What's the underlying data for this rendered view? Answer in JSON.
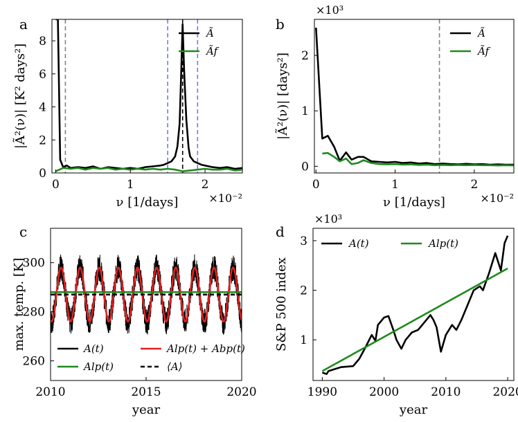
{
  "panels": [
    {
      "label": "a",
      "type": "line",
      "xlim": [
        -0.0005,
        0.025
      ],
      "ylim": [
        0,
        9.3
      ],
      "xticks": [
        0,
        1,
        2
      ],
      "xticks_scale": 0.01,
      "yticks": [
        0,
        2,
        4,
        6,
        8
      ],
      "xlabel": "ν [1/days]",
      "ylabel": "|Ã²(ν)| [K² days²]",
      "multiplier": "×10⁻²",
      "multiplier_pos": "x",
      "vlines": [
        {
          "x": 0.0013,
          "color": "#808080",
          "dash": "6,4"
        },
        {
          "x": 0.015,
          "color": "#6f78ee",
          "dash": "6,4"
        },
        {
          "x": 0.017,
          "color": "#000000",
          "dash": "6,4"
        },
        {
          "x": 0.019,
          "color": "#6f78ee",
          "dash": "6,4"
        }
      ],
      "legend": "upper right",
      "series": [
        {
          "name": "Ã",
          "color": "#000000",
          "x": [
            0,
            0.0003,
            0.0006,
            0.001,
            0.0015,
            0.002,
            0.003,
            0.004,
            0.005,
            0.006,
            0.007,
            0.008,
            0.009,
            0.01,
            0.011,
            0.012,
            0.013,
            0.014,
            0.0145,
            0.015,
            0.0155,
            0.016,
            0.0163,
            0.0166,
            0.0168,
            0.017,
            0.0172,
            0.0175,
            0.0178,
            0.018,
            0.0185,
            0.019,
            0.0195,
            0.02,
            0.021,
            0.022,
            0.023,
            0.024,
            0.025
          ],
          "y": [
            9.3,
            9.3,
            0.8,
            0.35,
            0.45,
            0.3,
            0.35,
            0.3,
            0.4,
            0.25,
            0.35,
            0.3,
            0.25,
            0.3,
            0.25,
            0.35,
            0.4,
            0.45,
            0.5,
            0.6,
            0.7,
            1.0,
            1.6,
            3.0,
            6.0,
            9.0,
            6.2,
            3.2,
            1.5,
            1.0,
            0.7,
            0.6,
            0.5,
            0.45,
            0.35,
            0.3,
            0.35,
            0.25,
            0.3
          ]
        },
        {
          "name": "Ãf",
          "color": "#1e8a1e",
          "x": [
            0,
            0.001,
            0.002,
            0.003,
            0.004,
            0.005,
            0.006,
            0.007,
            0.008,
            0.009,
            0.01,
            0.011,
            0.012,
            0.013,
            0.014,
            0.015,
            0.016,
            0.017,
            0.018,
            0.019,
            0.02,
            0.021,
            0.022,
            0.023,
            0.024,
            0.025
          ],
          "y": [
            0.1,
            0.3,
            0.25,
            0.3,
            0.2,
            0.3,
            0.25,
            0.3,
            0.2,
            0.25,
            0.2,
            0.25,
            0.2,
            0.25,
            0.2,
            0.25,
            0.2,
            0.1,
            0.15,
            0.2,
            0.25,
            0.2,
            0.2,
            0.25,
            0.15,
            0.2
          ]
        }
      ]
    },
    {
      "label": "b",
      "type": "line",
      "xlim": [
        -0.0002,
        0.025
      ],
      "ylim": [
        -120,
        2650
      ],
      "xticks": [
        0,
        1,
        2
      ],
      "xticks_scale": 0.01,
      "yticks": [
        0,
        1,
        2
      ],
      "yticks_scale": 1000,
      "xlabel": "ν [1/days]",
      "ylabel": "|Ã²(ν)| [days²]",
      "multiplier": "×10⁻²",
      "multiplier_pos": "x",
      "multiplier_y": "×10³",
      "vlines": [
        {
          "x": 0.0156,
          "color": "#808080",
          "dash": "6,4"
        }
      ],
      "legend": "upper right",
      "series": [
        {
          "name": "Ã",
          "color": "#000000",
          "x": [
            0,
            0.0008,
            0.0015,
            0.0023,
            0.003,
            0.0038,
            0.0045,
            0.0053,
            0.006,
            0.007,
            0.008,
            0.009,
            0.01,
            0.011,
            0.012,
            0.013,
            0.014,
            0.015,
            0.016,
            0.017,
            0.018,
            0.019,
            0.02,
            0.021,
            0.022,
            0.023,
            0.024,
            0.025
          ],
          "y": [
            2500,
            500,
            550,
            350,
            100,
            250,
            120,
            170,
            170,
            90,
            80,
            70,
            80,
            60,
            70,
            50,
            60,
            40,
            50,
            40,
            35,
            45,
            35,
            40,
            30,
            35,
            30,
            30
          ]
        },
        {
          "name": "Ãf",
          "color": "#1e8a1e",
          "x": [
            0.0008,
            0.0015,
            0.0023,
            0.003,
            0.0038,
            0.0045,
            0.0053,
            0.006,
            0.007,
            0.008,
            0.009,
            0.01,
            0.011,
            0.012,
            0.013,
            0.014,
            0.015,
            0.016,
            0.017,
            0.018,
            0.019,
            0.02,
            0.021,
            0.022,
            0.023,
            0.024,
            0.025
          ],
          "y": [
            230,
            240,
            170,
            90,
            140,
            40,
            60,
            110,
            60,
            40,
            35,
            40,
            30,
            35,
            25,
            30,
            20,
            25,
            20,
            25,
            20,
            25,
            20,
            20,
            15,
            20,
            15
          ]
        }
      ]
    },
    {
      "label": "c",
      "type": "line",
      "xlim": [
        2010,
        2020
      ],
      "ylim": [
        252,
        314
      ],
      "xticks": [
        2010,
        2015,
        2020
      ],
      "yticks": [
        260,
        280,
        300
      ],
      "xlabel": "year",
      "ylabel": "max. temp. [K]",
      "legend": "lower left",
      "legend_entries": [
        {
          "name": "A(t)",
          "color": "#000000",
          "dash": ""
        },
        {
          "name": "Alp(t)",
          "color": "#1e8a1e",
          "dash": ""
        },
        {
          "name": "Alp(t) + Abp(t)",
          "color": "#e02020",
          "dash": ""
        },
        {
          "name": "⟨A⟩",
          "color": "#000000",
          "dash": "6,4"
        }
      ],
      "series": [
        {
          "name": "A(t)",
          "kind": "noisy_seasonal",
          "mean": 287,
          "amplitude": 11,
          "noise": 5,
          "color": "#000000"
        },
        {
          "name": "Alp(t) + Abp(t)",
          "kind": "seasonal",
          "mean": 287,
          "amplitude": 11,
          "color": "#e02020"
        },
        {
          "name": "Alp(t)",
          "kind": "hline",
          "value": 288,
          "color": "#1e8a1e"
        },
        {
          "name": "⟨A⟩",
          "kind": "hline",
          "value": 287,
          "color": "#000000",
          "dash": "6,4"
        }
      ]
    },
    {
      "label": "d",
      "type": "line",
      "xlim": [
        1988.5,
        2021
      ],
      "ylim": [
        180,
        3250
      ],
      "xticks": [
        1990,
        2000,
        2010,
        2020
      ],
      "yticks": [
        1,
        2,
        3
      ],
      "yticks_scale": 1000,
      "xlabel": "year",
      "ylabel": "S&P 500 index",
      "multiplier_y": "×10³",
      "legend": "upper left",
      "series": [
        {
          "name": "A(t)",
          "color": "#000000",
          "x": [
            1990,
            1990.7,
            1991,
            1993,
            1995,
            1996,
            1997,
            1998,
            1998.6,
            1999,
            2000,
            2000.7,
            2001.5,
            2002,
            2002.8,
            2003.5,
            2004.5,
            2005.5,
            2006.5,
            2007.5,
            2008,
            2008.5,
            2009.2,
            2010,
            2011,
            2011.7,
            2012.5,
            2013.5,
            2014.5,
            2015.5,
            2016,
            2017,
            2018,
            2018.9,
            2019.5,
            2020
          ],
          "y": [
            340,
            310,
            370,
            450,
            470,
            620,
            850,
            1100,
            980,
            1300,
            1450,
            1480,
            1200,
            1000,
            820,
            1000,
            1150,
            1200,
            1350,
            1500,
            1400,
            1250,
            760,
            1100,
            1300,
            1200,
            1400,
            1700,
            2000,
            2080,
            2000,
            2350,
            2750,
            2400,
            2950,
            3100
          ]
        },
        {
          "name": "Alp(t)",
          "color": "#1e8a1e",
          "x": [
            1990,
            2020
          ],
          "y": [
            370,
            2440
          ]
        }
      ]
    }
  ]
}
